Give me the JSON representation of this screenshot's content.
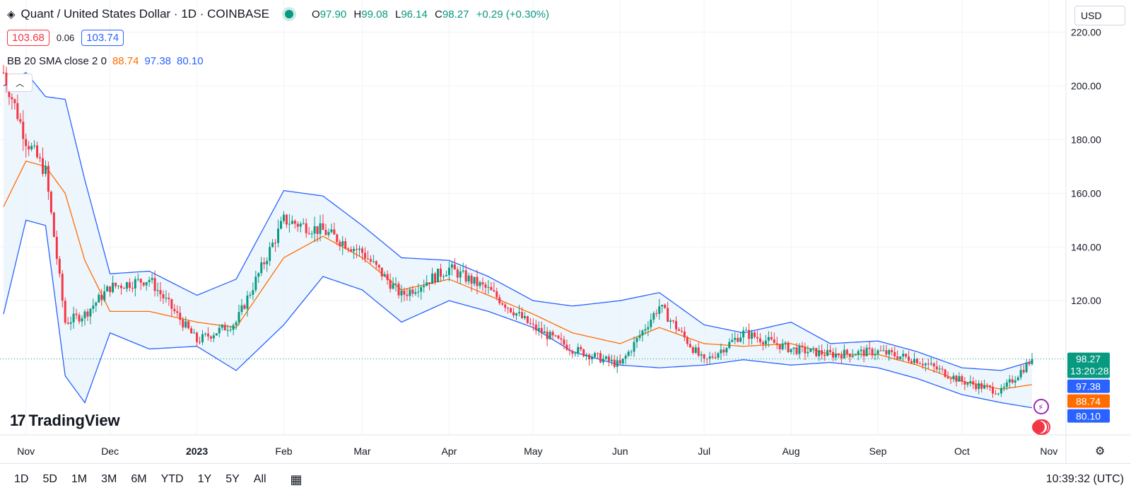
{
  "header": {
    "title": "Quant / United States Dollar · 1D · COINBASE",
    "ohlc": [
      {
        "label": "O",
        "value": "97.90"
      },
      {
        "label": "H",
        "value": "99.08"
      },
      {
        "label": "L",
        "value": "96.14"
      },
      {
        "label": "C",
        "value": "98.27"
      }
    ],
    "change": "+0.29 (+0.30%)",
    "sell_price": "103.68",
    "spread": "0.06",
    "buy_price": "103.74",
    "currency": "USD"
  },
  "indicator": {
    "name": "BB 20 SMA close 2 0",
    "basis": "88.74",
    "upper": "97.38",
    "lower": "80.10"
  },
  "price_labels": {
    "last": "98.27",
    "countdown": "13:20:28",
    "upper": "97.38",
    "basis": "88.74",
    "lower": "80.10"
  },
  "bottom_bar": {
    "ranges": [
      "1D",
      "5D",
      "1M",
      "3M",
      "6M",
      "YTD",
      "1Y",
      "5Y",
      "All"
    ],
    "time": "10:39:32 (UTC)"
  },
  "logo_text": "TradingView",
  "colors": {
    "up": "#089981",
    "down": "#f23645",
    "band": "#2962ff",
    "basis": "#ff6d00",
    "fill": "#e3f0fb"
  },
  "chart_data": {
    "type": "candlestick",
    "title": "Quant / United States Dollar · 1D · COINBASE",
    "ylim": [
      70,
      232
    ],
    "y_ticks": [
      120,
      140,
      160,
      180,
      200,
      220
    ],
    "x_ticks": [
      "Nov",
      "Dec",
      "2023",
      "Feb",
      "Mar",
      "Apr",
      "May",
      "Jun",
      "Jul",
      "Aug",
      "Sep",
      "Oct",
      "Nov"
    ],
    "last_price": 98.27,
    "grid": true,
    "series": [
      {
        "name": "Close",
        "x": [
          "Oct 24",
          "Nov 1",
          "Nov 8",
          "Nov 15",
          "Nov 22",
          "Dec 1",
          "Dec 15",
          "Jan 1",
          "Jan 15",
          "Feb 1",
          "Feb 15",
          "Mar 1",
          "Mar 15",
          "Apr 1",
          "Apr 15",
          "May 1",
          "May 15",
          "Jun 1",
          "Jun 15",
          "Jul 1",
          "Jul 15",
          "Aug 1",
          "Aug 15",
          "Sep 1",
          "Sep 15",
          "Oct 1",
          "Oct 15",
          "Oct 26"
        ],
        "values": [
          205,
          180,
          168,
          112,
          115,
          125,
          128,
          105,
          112,
          150,
          146,
          138,
          122,
          132,
          124,
          110,
          102,
          96,
          118,
          97,
          108,
          102,
          100,
          101,
          98,
          90,
          86,
          98.27
        ]
      },
      {
        "name": "Upper",
        "x": [
          "Oct 24",
          "Nov 1",
          "Nov 8",
          "Nov 15",
          "Nov 22",
          "Dec 1",
          "Dec 15",
          "Jan 1",
          "Jan 15",
          "Feb 1",
          "Feb 15",
          "Mar 1",
          "Mar 15",
          "Apr 1",
          "Apr 15",
          "May 1",
          "May 15",
          "Jun 1",
          "Jun 15",
          "Jul 1",
          "Jul 15",
          "Aug 1",
          "Aug 15",
          "Sep 1",
          "Sep 15",
          "Oct 1",
          "Oct 15",
          "Oct 26"
        ],
        "values": [
          200,
          205,
          196,
          195,
          165,
          130,
          131,
          122,
          128,
          161,
          159,
          148,
          136,
          135,
          129,
          120,
          118,
          120,
          123,
          111,
          108,
          112,
          104,
          105,
          101,
          95,
          94,
          97.38
        ]
      },
      {
        "name": "Basis",
        "x": [
          "Oct 24",
          "Nov 1",
          "Nov 8",
          "Nov 15",
          "Nov 22",
          "Dec 1",
          "Dec 15",
          "Jan 1",
          "Jan 15",
          "Feb 1",
          "Feb 15",
          "Mar 1",
          "Mar 15",
          "Apr 1",
          "Apr 15",
          "May 1",
          "May 15",
          "Jun 1",
          "Jun 15",
          "Jul 1",
          "Jul 15",
          "Aug 1",
          "Aug 15",
          "Sep 1",
          "Sep 15",
          "Oct 1",
          "Oct 15",
          "Oct 26"
        ],
        "values": [
          155,
          172,
          170,
          160,
          135,
          116,
          116,
          112,
          110,
          136,
          144,
          136,
          124,
          128,
          122,
          115,
          108,
          104,
          110,
          104,
          103,
          104,
          100,
          100,
          96,
          90,
          87,
          88.74
        ]
      },
      {
        "name": "Lower",
        "x": [
          "Oct 24",
          "Nov 1",
          "Nov 8",
          "Nov 15",
          "Nov 22",
          "Dec 1",
          "Dec 15",
          "Jan 1",
          "Jan 15",
          "Feb 1",
          "Feb 15",
          "Mar 1",
          "Mar 15",
          "Apr 1",
          "Apr 15",
          "May 1",
          "May 15",
          "Jun 1",
          "Jun 15",
          "Jul 1",
          "Jul 15",
          "Aug 1",
          "Aug 15",
          "Sep 1",
          "Sep 15",
          "Oct 1",
          "Oct 15",
          "Oct 26"
        ],
        "values": [
          115,
          150,
          148,
          92,
          82,
          108,
          102,
          103,
          94,
          111,
          129,
          124,
          112,
          120,
          116,
          110,
          101,
          96,
          95,
          96,
          98,
          96,
          97,
          95,
          91,
          85,
          82,
          80.1
        ]
      }
    ]
  }
}
